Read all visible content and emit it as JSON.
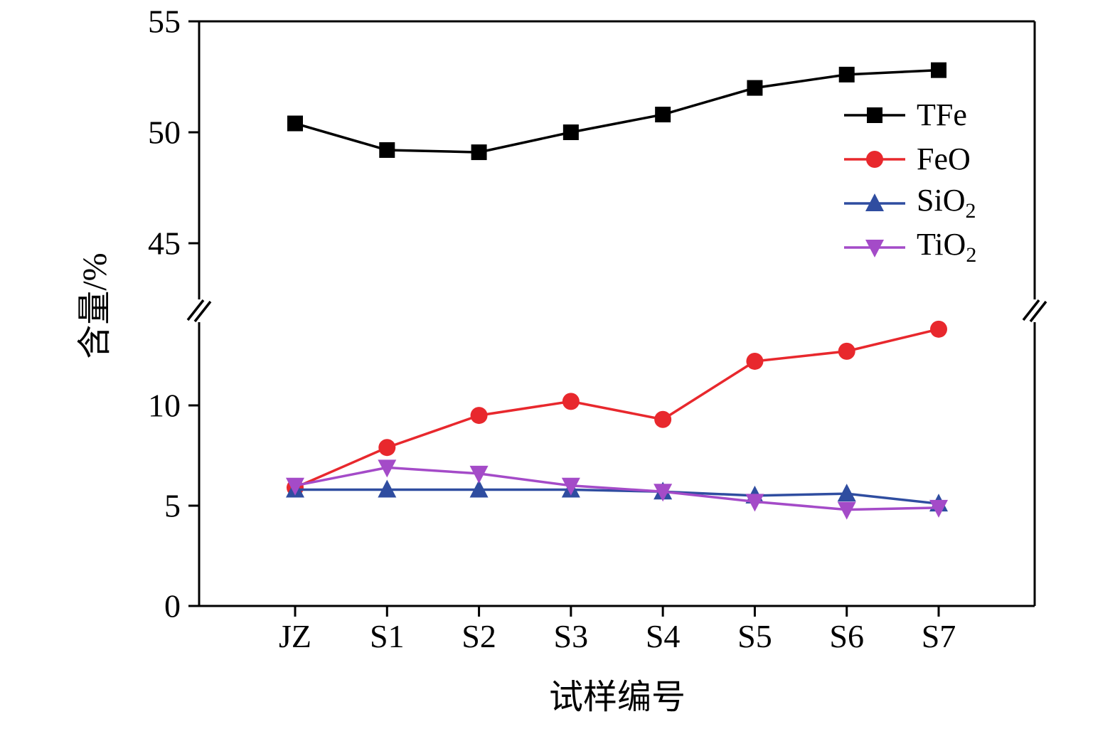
{
  "chart_data": {
    "type": "line",
    "title": "",
    "xlabel": "试样编号",
    "ylabel": "含量/%",
    "categories": [
      "JZ",
      "S1",
      "S2",
      "S3",
      "S4",
      "S5",
      "S6",
      "S7"
    ],
    "y_axis": {
      "broken": true,
      "lower": {
        "min": 0,
        "max": 14,
        "ticks": [
          0,
          5,
          10
        ]
      },
      "upper": {
        "min": 45,
        "max": 55,
        "ticks": [
          45,
          50,
          55
        ]
      }
    },
    "grid": false,
    "legend_position": "upper-right",
    "series": [
      {
        "name": "TFe",
        "label_base": "TFe",
        "label_sub": "",
        "color": "#000000",
        "marker": "square",
        "values": [
          50.4,
          49.2,
          49.1,
          50.0,
          50.8,
          52.0,
          52.6,
          52.8
        ]
      },
      {
        "name": "FeO",
        "label_base": "FeO",
        "label_sub": "",
        "color": "#e8282d",
        "marker": "circle",
        "values": [
          5.9,
          7.9,
          9.5,
          10.2,
          9.3,
          12.2,
          12.7,
          13.8
        ]
      },
      {
        "name": "SiO2",
        "label_base": "SiO",
        "label_sub": "2",
        "color": "#2f4da0",
        "marker": "triangle-up",
        "values": [
          5.8,
          5.8,
          5.8,
          5.8,
          5.7,
          5.5,
          5.6,
          5.1
        ]
      },
      {
        "name": "TiO2",
        "label_base": "TiO",
        "label_sub": "2",
        "color": "#a44bc8",
        "marker": "triangle-down",
        "values": [
          6.0,
          6.9,
          6.6,
          6.0,
          5.7,
          5.2,
          4.8,
          4.9
        ]
      }
    ]
  }
}
